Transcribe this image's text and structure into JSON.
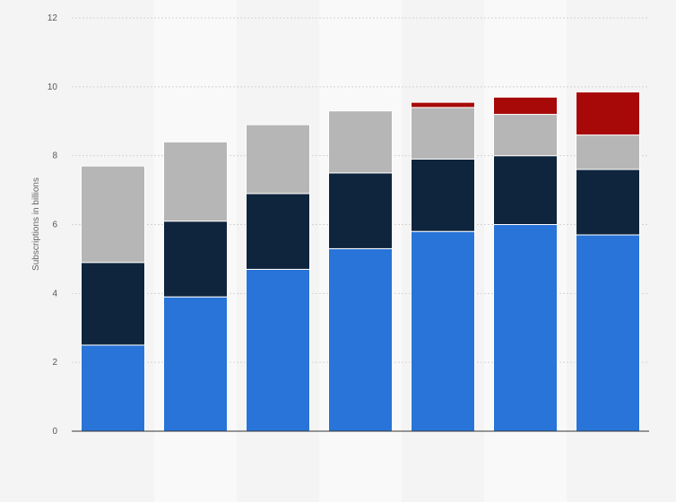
{
  "chart_data": {
    "type": "bar",
    "stacked": true,
    "title": "",
    "xlabel": "",
    "ylabel": "Subscriptions in billions",
    "ylim": [
      0,
      12
    ],
    "yticks": [
      0,
      2,
      4,
      6,
      8,
      10,
      12
    ],
    "grid": true,
    "legend": "none",
    "categories": [
      "",
      "",
      "",
      "",
      "",
      "",
      ""
    ],
    "series": [
      {
        "color": "#2874d9",
        "values": [
          2.5,
          3.9,
          4.7,
          5.3,
          5.8,
          6.0,
          5.7
        ]
      },
      {
        "color": "#0f253d",
        "values": [
          2.4,
          2.2,
          2.2,
          2.2,
          2.1,
          2.0,
          1.9
        ]
      },
      {
        "color": "#b6b6b6",
        "values": [
          2.8,
          2.3,
          2.0,
          1.8,
          1.5,
          1.2,
          1.0
        ]
      },
      {
        "color": "#a70909",
        "values": [
          0,
          0,
          0,
          0,
          0.15,
          0.5,
          1.25
        ]
      }
    ]
  }
}
